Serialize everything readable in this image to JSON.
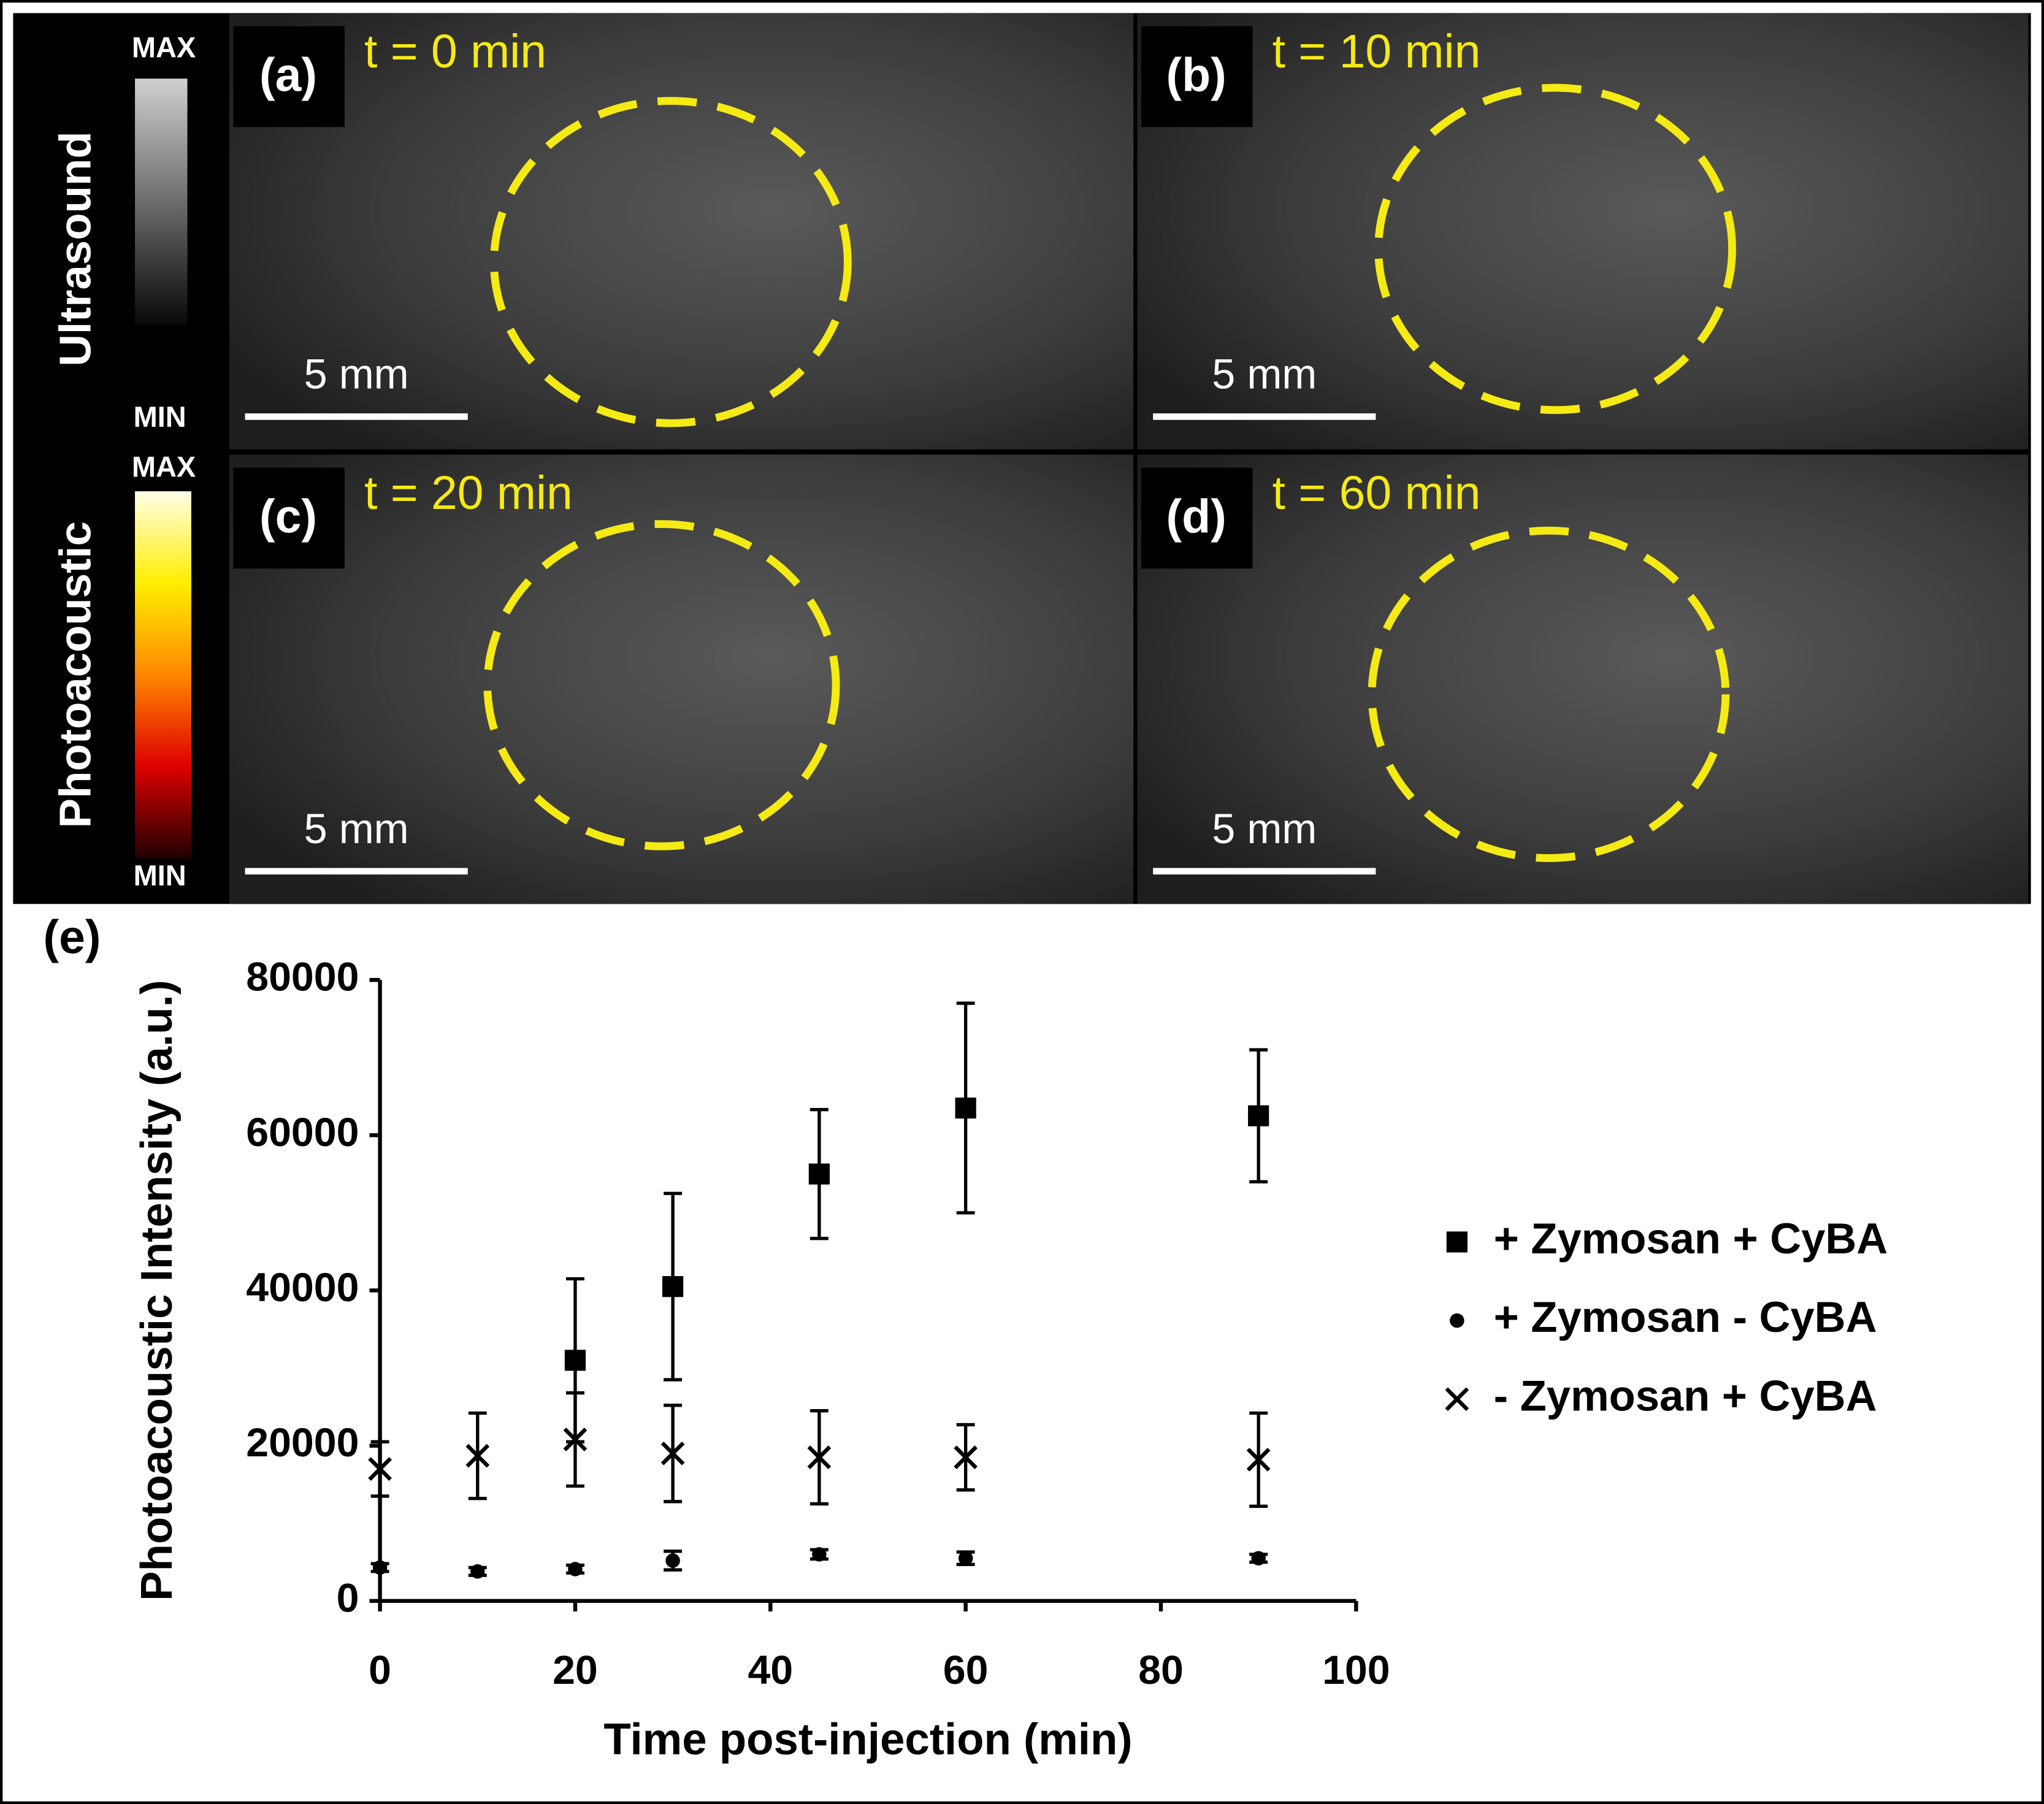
{
  "colorbars": [
    {
      "title": "Ultrasound",
      "max": "MAX",
      "min": "MIN"
    },
    {
      "title": "Photoacoustic",
      "max": "MAX",
      "min": "MIN"
    }
  ],
  "panels": [
    {
      "label": "(a)",
      "time": "t = 0 min",
      "scale": "5 mm"
    },
    {
      "label": "(b)",
      "time": "t = 10 min",
      "scale": "5 mm"
    },
    {
      "label": "(c)",
      "time": "t = 20 min",
      "scale": "5 mm"
    },
    {
      "label": "(d)",
      "time": "t = 60 min",
      "scale": "5 mm"
    }
  ],
  "chart_data": {
    "type": "scatter",
    "panel_label": "(e)",
    "x_label": "Time post-injection (min)",
    "y_label": "Photoacoustic Intensity (a.u.)",
    "xlim": [
      0,
      100
    ],
    "xticks": [
      0,
      20,
      40,
      60,
      80,
      100
    ],
    "ylim": [
      0,
      80000
    ],
    "yticks": [
      0,
      20000,
      40000,
      60000,
      80000
    ],
    "legend": "right",
    "series": [
      {
        "name": "+ Zymosan + CyBA",
        "color": "#000000",
        "marker": "square",
        "x": [
          20,
          30,
          45,
          60,
          90
        ],
        "values": [
          31000,
          40500,
          55000,
          63500,
          62500
        ],
        "errors": [
          10500,
          12000,
          8300,
          13500,
          8500
        ]
      },
      {
        "name": "+ Zymosan - CyBA",
        "color": "#000000",
        "marker": "circle",
        "x": [
          0,
          10,
          20,
          30,
          45,
          60,
          90
        ],
        "values": [
          4300,
          3800,
          4100,
          5200,
          6000,
          5500,
          5500
        ],
        "errors": [
          500,
          500,
          500,
          1200,
          600,
          800,
          500
        ]
      },
      {
        "name": "- Zymosan + CyBA",
        "color": "#000000",
        "marker": "x",
        "x": [
          0,
          10,
          20,
          30,
          45,
          60,
          90
        ],
        "values": [
          17000,
          18700,
          20800,
          19000,
          18500,
          18500,
          18200
        ],
        "errors": [
          3500,
          5500,
          6000,
          6200,
          6000,
          4200,
          6000
        ]
      }
    ]
  }
}
